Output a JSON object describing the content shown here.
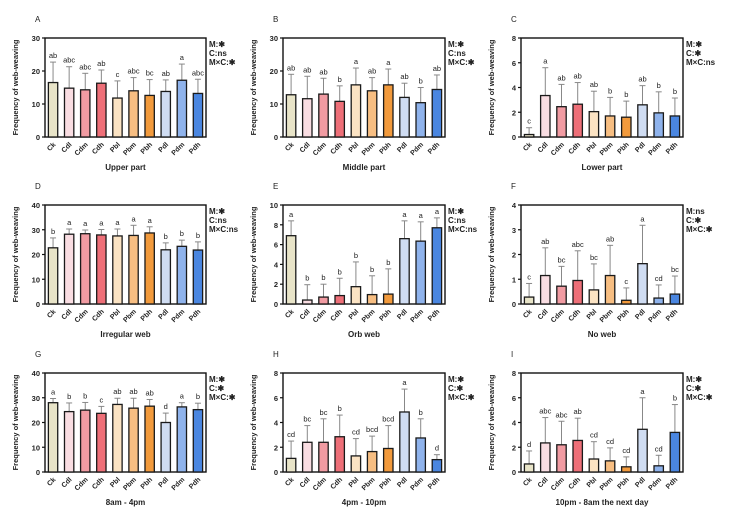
{
  "figure": {
    "categories": [
      "Ck",
      "Cdl",
      "Cdm",
      "Cdh",
      "Pbl",
      "Pbm",
      "Pbh",
      "Pdl",
      "Pdm",
      "Pdh"
    ],
    "colors": [
      "#e8e4c8",
      "#f9dde2",
      "#f19ba2",
      "#ee6f78",
      "#fbe3c3",
      "#f7be82",
      "#f29a3c",
      "#cfdcf2",
      "#8fb3ec",
      "#4a86e0"
    ],
    "ylabel": "Frequency of web-weaving"
  },
  "chart_data": [
    {
      "type": "bar",
      "panel": "A",
      "title": "",
      "xlabel": "Upper part",
      "ylabel": "Frequency of web-weaving",
      "ylim": [
        0,
        30
      ],
      "yticks": [
        0,
        10,
        20,
        30
      ],
      "categories": [
        "Ck",
        "Cdl",
        "Cdm",
        "Cdh",
        "Pbl",
        "Pbm",
        "Pbh",
        "Pdl",
        "Pdm",
        "Pdh"
      ],
      "values": [
        16.5,
        14.8,
        14.3,
        16.3,
        11.8,
        14.0,
        12.6,
        13.8,
        17.2,
        13.2
      ],
      "errors": [
        6.2,
        6.5,
        5.0,
        4.0,
        5.2,
        4.0,
        4.8,
        3.5,
        4.9,
        4.3
      ],
      "letters": [
        "ab",
        "abc",
        "abc",
        "ab",
        "c",
        "abc",
        "bc",
        "ab",
        "a",
        "abc"
      ],
      "stats": [
        "M:✱",
        "C:ns",
        "M×C:✱"
      ]
    },
    {
      "type": "bar",
      "panel": "B",
      "title": "",
      "xlabel": "Middle part",
      "ylabel": "Frequency of web-weaving",
      "ylim": [
        0,
        30
      ],
      "yticks": [
        0,
        10,
        20,
        30
      ],
      "categories": [
        "Ck",
        "Cdl",
        "Cdm",
        "Cdh",
        "Pbl",
        "Pbm",
        "Pbh",
        "Pdl",
        "Pdm",
        "Pdh"
      ],
      "values": [
        12.8,
        11.6,
        13.0,
        10.8,
        15.8,
        14.0,
        15.8,
        12.0,
        10.4,
        14.4
      ],
      "errors": [
        6.2,
        6.8,
        4.8,
        4.7,
        5.1,
        4.0,
        4.8,
        4.3,
        4.6,
        4.4
      ],
      "letters": [
        "ab",
        "ab",
        "ab",
        "b",
        "a",
        "ab",
        "a",
        "ab",
        "b",
        "ab"
      ],
      "stats": [
        "M:✱",
        "C:ns",
        "M×C:✱"
      ]
    },
    {
      "type": "bar",
      "panel": "C",
      "title": "",
      "xlabel": "Lower part",
      "ylabel": "Frequency of web-weaving",
      "ylim": [
        0,
        8
      ],
      "yticks": [
        0,
        2,
        4,
        6,
        8
      ],
      "categories": [
        "Ck",
        "Cdl",
        "Cdm",
        "Cdh",
        "Pbl",
        "Pbm",
        "Pbh",
        "Pdl",
        "Pdm",
        "Pdh"
      ],
      "values": [
        0.2,
        3.35,
        2.45,
        2.65,
        2.05,
        1.7,
        1.6,
        2.6,
        1.95,
        1.7
      ],
      "errors": [
        0.55,
        2.25,
        1.8,
        1.75,
        1.65,
        1.5,
        1.3,
        1.55,
        1.7,
        1.45
      ],
      "letters": [
        "c",
        "a",
        "ab",
        "ab",
        "ab",
        "b",
        "b",
        "ab",
        "b",
        "b"
      ],
      "stats": [
        "M:✱",
        "C:✱",
        "M×C:ns"
      ]
    },
    {
      "type": "bar",
      "panel": "D",
      "title": "",
      "xlabel": "Irregular web",
      "ylabel": "Frequency of web-weaving",
      "ylim": [
        0,
        40
      ],
      "yticks": [
        0,
        10,
        20,
        30,
        40
      ],
      "categories": [
        "Ck",
        "Cdl",
        "Cdm",
        "Cdh",
        "Pbl",
        "Pbm",
        "Pbh",
        "Pdl",
        "Pdm",
        "Pdh"
      ],
      "values": [
        22.7,
        28.2,
        28.4,
        27.9,
        27.5,
        27.7,
        28.7,
        21.9,
        23.3,
        21.8
      ],
      "errors": [
        4.0,
        2.1,
        1.5,
        2.2,
        2.8,
        4.1,
        2.5,
        2.8,
        2.5,
        3.3
      ],
      "letters": [
        "b",
        "a",
        "a",
        "a",
        "a",
        "a",
        "a",
        "b",
        "b",
        "b"
      ],
      "stats": [
        "M:✱",
        "C:ns",
        "M×C:ns"
      ]
    },
    {
      "type": "bar",
      "panel": "E",
      "title": "",
      "xlabel": "Orb web",
      "ylabel": "Frequency of web-weaving",
      "ylim": [
        0,
        10
      ],
      "yticks": [
        0,
        2,
        4,
        6,
        8,
        10
      ],
      "categories": [
        "Ck",
        "Cdl",
        "Cdm",
        "Cdh",
        "Pbl",
        "Pbm",
        "Pbh",
        "Pdl",
        "Pdm",
        "Pdh"
      ],
      "values": [
        6.9,
        0.4,
        0.7,
        0.85,
        1.75,
        0.95,
        1.0,
        6.6,
        6.35,
        7.7
      ],
      "errors": [
        1.5,
        1.55,
        1.3,
        1.75,
        2.5,
        1.9,
        2.55,
        1.8,
        1.95,
        1.0
      ],
      "letters": [
        "a",
        "b",
        "b",
        "b",
        "b",
        "b",
        "b",
        "a",
        "a",
        "a"
      ],
      "stats": [
        "M:✱",
        "C:ns",
        "M×C:ns"
      ]
    },
    {
      "type": "bar",
      "panel": "F",
      "title": "",
      "xlabel": "No web",
      "ylabel": "Frequency of web-weaving",
      "ylim": [
        0,
        4
      ],
      "yticks": [
        0,
        1,
        2,
        3,
        4
      ],
      "categories": [
        "Ck",
        "Cdl",
        "Cdm",
        "Cdh",
        "Pbl",
        "Pbm",
        "Pbh",
        "Pdl",
        "Pdm",
        "Pdh"
      ],
      "values": [
        0.28,
        1.15,
        0.72,
        0.95,
        0.57,
        1.15,
        0.15,
        1.63,
        0.24,
        0.4
      ],
      "errors": [
        0.55,
        1.12,
        0.8,
        1.2,
        1.05,
        1.22,
        0.5,
        1.55,
        0.53,
        0.73
      ],
      "letters": [
        "c",
        "ab",
        "bc",
        "abc",
        "bc",
        "ab",
        "c",
        "a",
        "cd",
        "bc"
      ],
      "stats": [
        "M:ns",
        "C:✱",
        "M×C:✱"
      ]
    },
    {
      "type": "bar",
      "panel": "G",
      "title": "",
      "xlabel": "8am - 4pm",
      "ylabel": "Frequency of web-weaving",
      "ylim": [
        0,
        40
      ],
      "yticks": [
        0,
        10,
        20,
        30,
        40
      ],
      "categories": [
        "Ck",
        "Cdl",
        "Cdm",
        "Cdh",
        "Pbl",
        "Pbm",
        "Pbh",
        "Pdl",
        "Pdm",
        "Pdh"
      ],
      "values": [
        28.0,
        24.4,
        25.0,
        23.7,
        27.3,
        25.8,
        26.6,
        20.0,
        26.3,
        25.2
      ],
      "errors": [
        1.7,
        3.5,
        3.1,
        2.8,
        2.5,
        4.0,
        2.7,
        3.8,
        1.7,
        2.6
      ],
      "letters": [
        "a",
        "b",
        "b",
        "c",
        "ab",
        "ab",
        "ab",
        "d",
        "a",
        "b"
      ],
      "stats": [
        "M:✱",
        "C:✱",
        "M×C:✱"
      ]
    },
    {
      "type": "bar",
      "panel": "H",
      "title": "",
      "xlabel": "4pm - 10pm",
      "ylabel": "Frequency of web-weaving",
      "ylim": [
        0,
        8
      ],
      "yticks": [
        0,
        2,
        4,
        6,
        8
      ],
      "categories": [
        "Ck",
        "Cdl",
        "Cdm",
        "Cdh",
        "Pbl",
        "Pbm",
        "Pbh",
        "Pdl",
        "Pdm",
        "Pdh"
      ],
      "values": [
        1.1,
        2.4,
        2.4,
        2.85,
        1.3,
        1.65,
        1.9,
        4.85,
        2.75,
        1.0
      ],
      "errors": [
        1.4,
        1.35,
        1.9,
        1.75,
        1.4,
        1.25,
        1.85,
        1.85,
        1.55,
        0.4
      ],
      "letters": [
        "cd",
        "bc",
        "bc",
        "b",
        "cd",
        "bcd",
        "bcd",
        "a",
        "b",
        "d"
      ],
      "stats": [
        "M:✱",
        "C:✱",
        "M×C:✱"
      ]
    },
    {
      "type": "bar",
      "panel": "I",
      "title": "",
      "xlabel": "10pm - 8am the next day",
      "ylabel": "Frequency of web-weaving",
      "ylim": [
        0,
        8
      ],
      "yticks": [
        0,
        2,
        4,
        6,
        8
      ],
      "categories": [
        "Ck",
        "Cdl",
        "Cdm",
        "Cdh",
        "Pbl",
        "Pbm",
        "Pbh",
        "Pdl",
        "Pdm",
        "Pdh"
      ],
      "values": [
        0.65,
        2.35,
        2.2,
        2.55,
        1.05,
        0.9,
        0.42,
        3.45,
        0.5,
        3.2
      ],
      "errors": [
        1.05,
        2.05,
        1.9,
        1.8,
        1.4,
        1.05,
        0.8,
        2.55,
        0.85,
        2.25
      ],
      "letters": [
        "d",
        "abc",
        "abc",
        "ab",
        "cd",
        "cd",
        "cd",
        "a",
        "cd",
        "b"
      ],
      "stats": [
        "M:✱",
        "C:✱",
        "M×C:✱"
      ]
    }
  ]
}
